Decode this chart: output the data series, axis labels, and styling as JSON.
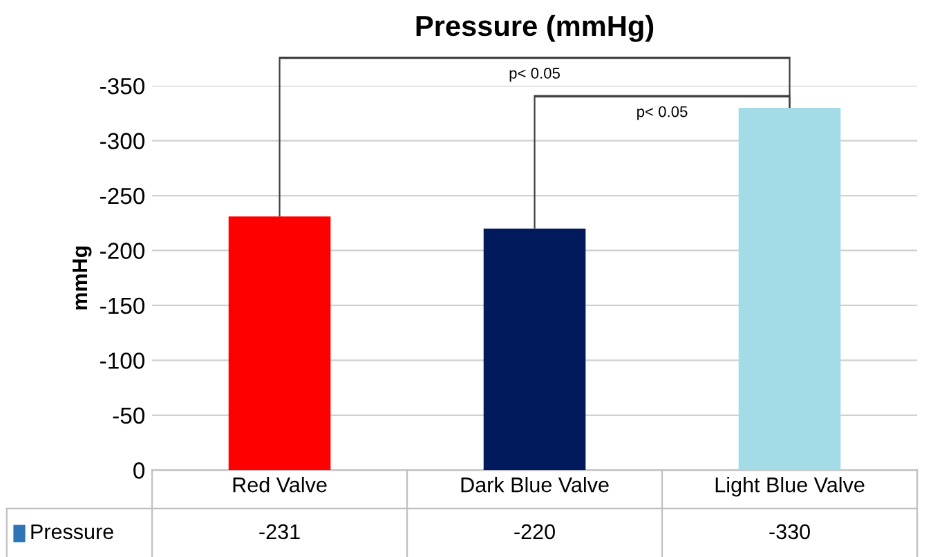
{
  "chart_data": {
    "type": "bar",
    "title": "Pressure (mmHg)",
    "ylabel": "mmHg",
    "categories": [
      "Red Valve",
      "Dark Blue Valve",
      "Light Blue Valve"
    ],
    "series": [
      {
        "name": "Pressure",
        "color": "#2e75b6",
        "colors": [
          "#ff0000",
          "#001a5c",
          "#a3dce6"
        ],
        "values": [
          -231,
          -220,
          -330
        ]
      }
    ],
    "ylim": [
      0,
      -350
    ],
    "yticks": [
      0,
      -50,
      -100,
      -150,
      -200,
      -250,
      -300,
      -350
    ],
    "grid": "y",
    "data_labels": true,
    "legend": "bottom",
    "annotations": [
      "p< 0.05",
      "p< 0.05"
    ]
  }
}
